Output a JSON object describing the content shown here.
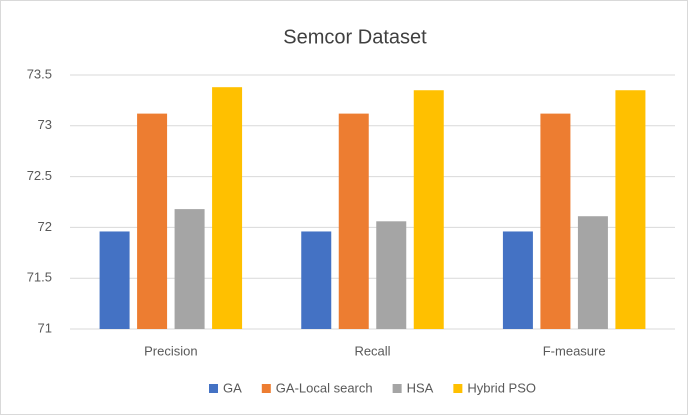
{
  "chart_data": {
    "type": "bar",
    "title": "Semcor Dataset",
    "categories": [
      "Precision",
      "Recall",
      "F-measure"
    ],
    "series": [
      {
        "name": "GA",
        "color": "#4472c4",
        "values": [
          71.96,
          71.96,
          71.96
        ]
      },
      {
        "name": "GA-Local search",
        "color": "#ed7d31",
        "values": [
          73.12,
          73.12,
          73.12
        ]
      },
      {
        "name": "HSA",
        "color": "#a5a5a5",
        "values": [
          72.18,
          72.06,
          72.11
        ]
      },
      {
        "name": "Hybrid PSO",
        "color": "#ffc000",
        "values": [
          73.38,
          73.35,
          73.35
        ]
      }
    ],
    "ylim": [
      71,
      73.5
    ],
    "yticks": [
      71,
      71.5,
      72,
      72.5,
      73,
      73.5
    ],
    "grid": true,
    "legend": "bottom"
  }
}
